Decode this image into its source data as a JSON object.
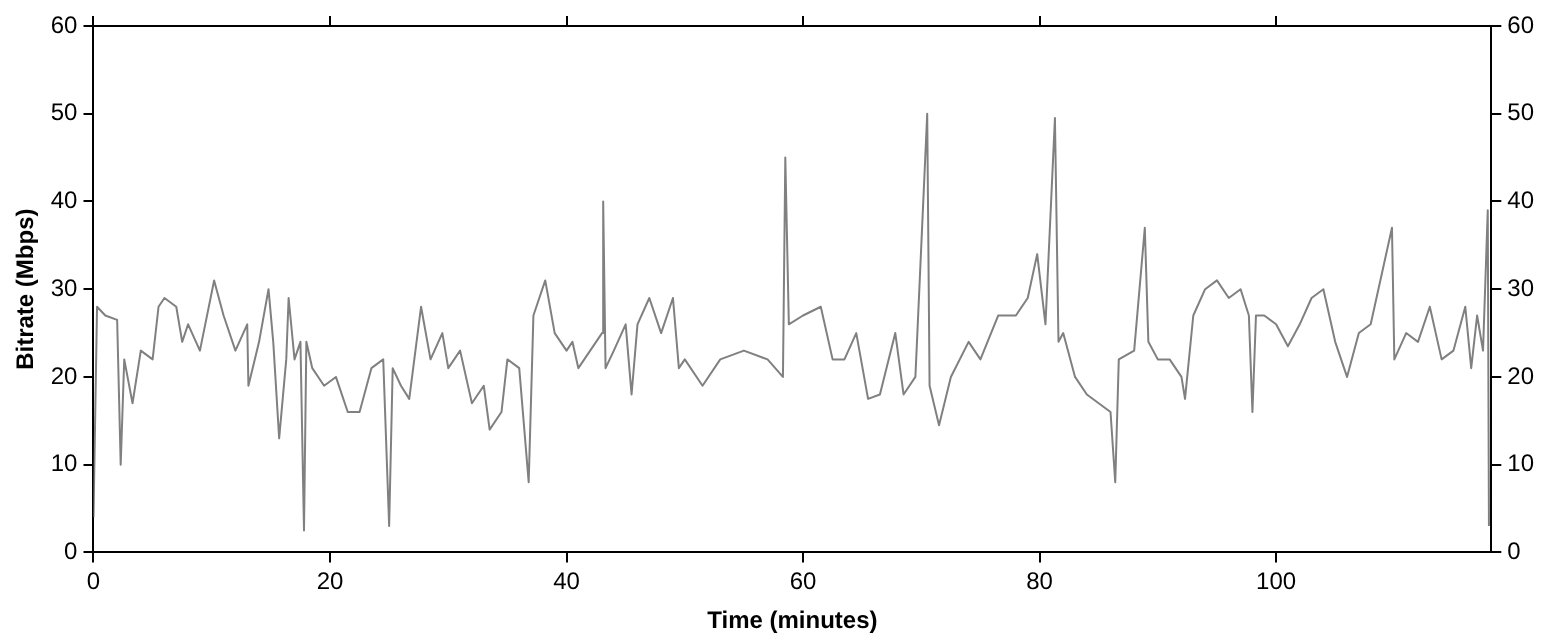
{
  "chart_data": {
    "type": "line",
    "xlabel": "Time (minutes)",
    "ylabel": "Bitrate (Mbps)",
    "xlim": [
      0,
      118.2
    ],
    "xticks": [
      0,
      20,
      40,
      60,
      80,
      100
    ],
    "ylim": [
      0,
      60
    ],
    "yticks": [
      0,
      10,
      20,
      30,
      40,
      50,
      60
    ],
    "y2lim": [
      0,
      60
    ],
    "y2ticks": [
      0,
      10,
      20,
      30,
      40,
      50,
      60
    ],
    "grid": false,
    "legend": false,
    "marker": "none",
    "line_style": "solid",
    "series": [
      {
        "color": "#808080",
        "x": [
          0,
          0.3,
          1,
          2,
          2.3,
          2.6,
          3.3,
          4,
          5,
          5.5,
          6,
          7,
          7.5,
          8,
          9,
          10.2,
          11,
          12,
          13,
          13.1,
          14,
          14.8,
          15.2,
          15.7,
          16.3,
          16.5,
          17,
          17.5,
          17.8,
          18,
          18.5,
          19.5,
          20.5,
          21.5,
          22.5,
          23.5,
          24.5,
          25,
          25.3,
          26,
          26.7,
          27.7,
          28.5,
          29.5,
          30,
          31,
          32,
          33,
          33.5,
          34.5,
          35,
          36,
          36.8,
          37.2,
          38.2,
          39,
          40,
          40.5,
          41,
          42,
          43,
          43.1,
          43.3,
          44,
          45,
          45.5,
          46,
          47,
          48,
          49,
          49.5,
          50,
          51.5,
          53,
          55,
          57,
          58.3,
          58.5,
          58.8,
          60,
          61.5,
          62.5,
          63.5,
          64.5,
          65.5,
          66.5,
          67.8,
          68.5,
          69.5,
          70.5,
          70.7,
          71.5,
          72.5,
          74,
          75,
          76.5,
          78,
          79,
          79.8,
          80.5,
          81.3,
          81.6,
          82,
          83,
          84,
          85,
          86,
          86.4,
          86.7,
          88,
          88.9,
          89.2,
          90,
          91,
          92,
          92.3,
          93,
          94,
          95,
          96,
          97,
          97.7,
          98,
          98.3,
          99,
          100,
          101,
          102,
          103,
          104,
          105,
          106,
          107,
          108,
          109.8,
          110,
          111,
          112,
          113,
          114,
          115,
          116,
          116.5,
          117,
          117.5,
          117.9,
          118
        ],
        "values": [
          4,
          28,
          27,
          26.5,
          10,
          22,
          17,
          23,
          22,
          28,
          29,
          28,
          24,
          26,
          23,
          31,
          27,
          23,
          26,
          19,
          24,
          30,
          24,
          13,
          22,
          29,
          22,
          24,
          2.5,
          24,
          21,
          19,
          20,
          16,
          16,
          21,
          22,
          3,
          21,
          19,
          17.5,
          28,
          22,
          25,
          21,
          23,
          17,
          19,
          14,
          16,
          22,
          21,
          8,
          27,
          31,
          25,
          23,
          24,
          21,
          23,
          25,
          40,
          21,
          23,
          26,
          18,
          26,
          29,
          25,
          29,
          21,
          22,
          19,
          22,
          23,
          22,
          20,
          45,
          26,
          27,
          28,
          22,
          22,
          25,
          17.5,
          18,
          25,
          18,
          20,
          50,
          19,
          14.5,
          20,
          24,
          22,
          27,
          27,
          29,
          34,
          26,
          49.5,
          24,
          25,
          20,
          18,
          17,
          16,
          8,
          22,
          23,
          37,
          24,
          22,
          22,
          20,
          17.5,
          27,
          30,
          31,
          29,
          30,
          27,
          16,
          27,
          27,
          26,
          23.5,
          26,
          29,
          30,
          24,
          20,
          25,
          26,
          37,
          22,
          25,
          24,
          28,
          22,
          23,
          28,
          21,
          27,
          23,
          39,
          3
        ]
      }
    ]
  }
}
